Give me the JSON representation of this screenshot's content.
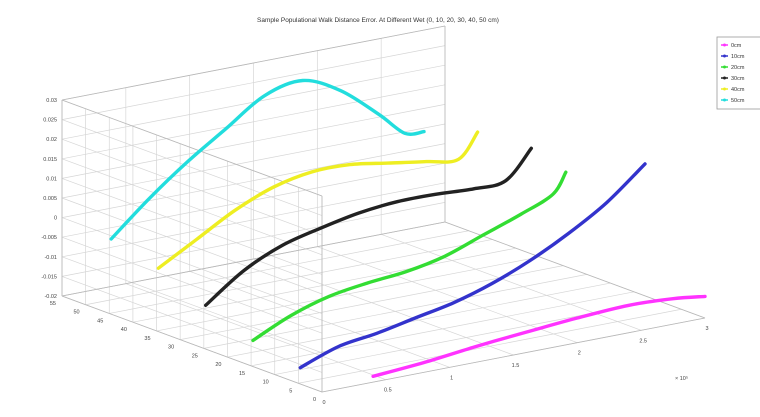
{
  "chart_data": {
    "type": "line",
    "title": "Sample Populational Walk Distance Error. At Different Wet (0, 10, 20, 30, 40, 50 cm)",
    "xlabel": "",
    "ylabel": "",
    "zlabel": "",
    "x_tick_labels": [
      "0",
      "0.5",
      "1",
      "1.5",
      "2",
      "2.5",
      "3"
    ],
    "x_multiplier": "× 10⁵",
    "y_tick_labels": [
      "0",
      "5",
      "10",
      "15",
      "20",
      "25",
      "30",
      "35",
      "40",
      "45",
      "50",
      "55"
    ],
    "z_tick_labels": [
      "0.03",
      "0.025",
      "0.02",
      "0.015",
      "0.01",
      "0.005",
      "0",
      "-0.005",
      "-0.01",
      "-0.015",
      "-0.02"
    ],
    "xlim": [
      0,
      3
    ],
    "ylim": [
      0,
      55
    ],
    "zlim": [
      -0.02,
      0.03
    ],
    "grid": true,
    "legend_position": "top-right",
    "series": [
      {
        "name": "0cm",
        "color": "#ff33ff",
        "depth": 0,
        "x": [
          0.4,
          0.8,
          1.2,
          1.6,
          2.0,
          2.4,
          2.75,
          3.0
        ],
        "values": [
          -0.0185,
          -0.0175,
          -0.016,
          -0.0148,
          -0.0137,
          -0.013,
          -0.0135,
          -0.0145
        ]
      },
      {
        "name": "10cm",
        "color": "#3333cc",
        "depth": 10,
        "x": [
          0.2,
          0.5,
          0.8,
          1.1,
          1.4,
          1.7,
          2.0,
          2.3,
          2.6,
          2.9
        ],
        "values": [
          -0.0195,
          -0.016,
          -0.0145,
          -0.0125,
          -0.0105,
          -0.0075,
          -0.0035,
          0.0015,
          0.0075,
          0.0155
        ]
      },
      {
        "name": "20cm",
        "color": "#33dd33",
        "depth": 20,
        "x": [
          0.2,
          0.5,
          0.8,
          1.1,
          1.4,
          1.7,
          2.0,
          2.3,
          2.55,
          2.65
        ],
        "values": [
          -0.017,
          -0.0125,
          -0.0095,
          -0.008,
          -0.007,
          -0.005,
          -0.0015,
          0.002,
          0.0055,
          0.0105
        ]
      },
      {
        "name": "30cm",
        "color": "#222222",
        "depth": 30,
        "x": [
          0.2,
          0.5,
          0.8,
          1.1,
          1.4,
          1.7,
          2.0,
          2.3,
          2.55,
          2.75
        ],
        "values": [
          -0.0125,
          -0.0055,
          -0.001,
          0.0015,
          0.0035,
          0.0045,
          0.0045,
          0.004,
          0.0045,
          0.0115
        ]
      },
      {
        "name": "40cm",
        "color": "#eeee22",
        "depth": 40,
        "x": [
          0.2,
          0.5,
          0.8,
          1.1,
          1.4,
          1.7,
          2.0,
          2.3,
          2.55,
          2.7
        ],
        "values": [
          -0.0075,
          -0.002,
          0.0035,
          0.0075,
          0.0095,
          0.0095,
          0.008,
          0.0065,
          0.0055,
          0.0115
        ]
      },
      {
        "name": "50cm",
        "color": "#22dddd",
        "depth": 50,
        "x": [
          0.2,
          0.5,
          0.8,
          1.1,
          1.4,
          1.7,
          2.0,
          2.3,
          2.5,
          2.65
        ],
        "values": [
          -0.0045,
          0.004,
          0.0115,
          0.018,
          0.0245,
          0.0265,
          0.022,
          0.014,
          0.008,
          0.0075
        ]
      }
    ]
  }
}
